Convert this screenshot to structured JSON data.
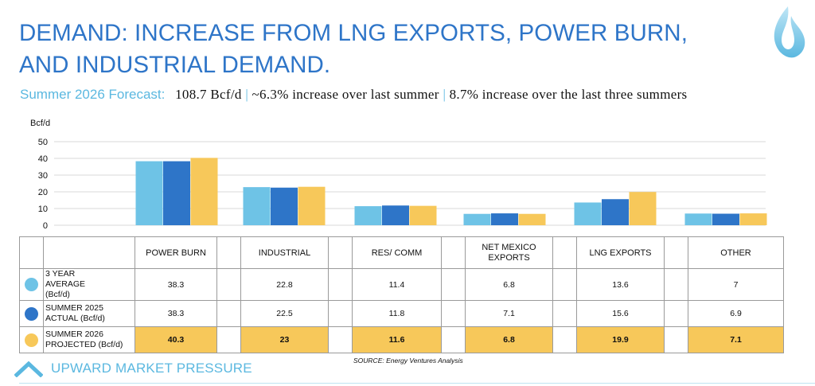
{
  "title_line1": "DEMAND: INCREASE FROM LNG EXPORTS, POWER BURN,",
  "title_line2": "AND INDUSTRIAL DEMAND.",
  "subtitle": {
    "label": "Summer 2026 Forecast:",
    "part1": "108.7 Bcf/d",
    "sep1": "|",
    "part2": "~6.3% increase over last summer",
    "sep2": "|",
    "part3": "8.7% increase over the last three summers"
  },
  "icons": {
    "logo": "blue-flame-icon",
    "upward": "chevron-up-icon"
  },
  "colors": {
    "title": "#2E75C8",
    "accent": "#5BB8E0",
    "highlight": "#F7C85A"
  },
  "chart_data": {
    "type": "bar",
    "ylabel": "Bcf/d",
    "ylim": [
      0,
      50
    ],
    "yticks": [
      "0",
      "10",
      "20",
      "30",
      "40",
      "50"
    ],
    "grid": true,
    "categories": [
      "POWER BURN",
      "INDUSTRIAL",
      "RES/ COMM",
      "NET MEXICO EXPORTS",
      "LNG EXPORTS",
      "OTHER"
    ],
    "series": [
      {
        "name": "3 YEAR AVERAGE (Bcf/d)",
        "color": "#6EC3E6",
        "values": [
          38.3,
          22.8,
          11.4,
          6.8,
          13.6,
          7
        ]
      },
      {
        "name": "SUMMER 2025 ACTUAL (Bcf/d)",
        "color": "#2E75C8",
        "values": [
          38.3,
          22.5,
          11.8,
          7.1,
          15.6,
          6.9
        ]
      },
      {
        "name": "SUMMER 2026 PROJECTED (Bcf/d)",
        "color": "#F7C85A",
        "values": [
          40.3,
          23,
          11.6,
          6.8,
          19.9,
          7.1
        ]
      }
    ]
  },
  "table": {
    "headers": [
      "POWER BURN",
      "INDUSTRIAL",
      "RES/ COMM",
      "NET MEXICO EXPORTS",
      "LNG EXPORTS",
      "OTHER"
    ],
    "rows": [
      {
        "label": "3 YEAR AVERAGE (Bcf/d)",
        "values": [
          "38.3",
          "22.8",
          "11.4",
          "6.8",
          "13.6",
          "7"
        ]
      },
      {
        "label": "SUMMER 2025 ACTUAL (Bcf/d)",
        "values": [
          "38.3",
          "22.5",
          "11.8",
          "7.1",
          "15.6",
          "6.9"
        ]
      },
      {
        "label": "SUMMER 2026 PROJECTED (Bcf/d)",
        "values": [
          "40.3",
          "23",
          "11.6",
          "6.8",
          "19.9",
          "7.1"
        ]
      }
    ]
  },
  "source": "SOURCE: Energy Ventures Analysis",
  "footer_label": "UPWARD MARKET PRESSURE"
}
